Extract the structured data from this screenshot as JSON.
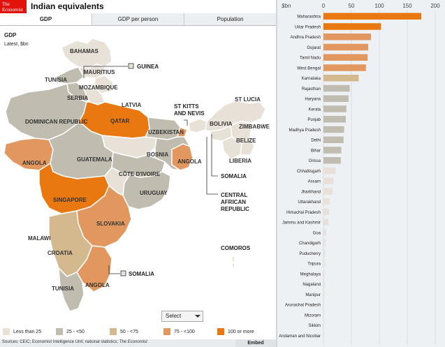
{
  "header": {
    "logo_line1": "The",
    "logo_line2": "Economist",
    "title": "Indian equivalents"
  },
  "tabs": [
    {
      "label": "GDP",
      "active": true
    },
    {
      "label": "GDP per person",
      "active": false
    },
    {
      "label": "Population",
      "active": false
    }
  ],
  "map": {
    "title": "GDP",
    "subtitle": "Latest, $bn",
    "region_labels": [
      "BAHAMAS",
      "MAURITIUS",
      "TUNISIA",
      "MOZAMBIQUE",
      "SERBIA",
      "LATVIA",
      "DOMINICAN REPUBLIC",
      "QATAR",
      "UZBEKISTAN",
      "ANGOLA",
      "GUATEMALA",
      "BOSNIA",
      "ANGOLA",
      "CÔTE D'IVOIRE",
      "URUGUAY",
      "SINGAPORE",
      "SLOVAKIA",
      "MALAWI",
      "CROATIA",
      "ANGOLA",
      "TUNISIA",
      "BOLIVIA",
      "ST LUCIA",
      "ZIMBABWE",
      "BELIZE",
      "LIBERIA"
    ],
    "callouts": [
      "GUINEA",
      "ST KITTS",
      "AND NEVIS",
      "SOMALIA",
      "CENTRAL",
      "AFRICAN",
      "REPUBLIC",
      "COMOROS",
      "SOMALIA"
    ]
  },
  "select": {
    "label": "Select"
  },
  "legend": [
    {
      "label": "Less than 25",
      "color": "#e8e1d8"
    },
    {
      "label": "25 - <50",
      "color": "#c0bcaf"
    },
    {
      "label": "50 - <75",
      "color": "#d4b98e"
    },
    {
      "label": "75 - <100",
      "color": "#e1975e"
    },
    {
      "label": "100 or more",
      "color": "#e8780f"
    }
  ],
  "footer": {
    "sources": "Sources: CEIC; Economist Intelligence Unit; national statistics;",
    "sources_brand": "The Economist",
    "embed": "Embed"
  },
  "chart_data": {
    "type": "bar",
    "orientation": "horizontal",
    "unit_label": "$bn",
    "xlim": [
      0,
      200
    ],
    "xticks": [
      "0",
      "50",
      "100",
      "150",
      "200"
    ],
    "grid": true,
    "categories": [
      "Maharashtra",
      "Uttar Pradesh",
      "Andhra Pradesh",
      "Gujarat",
      "Tamil Nadu",
      "West Bengal",
      "Karnataka",
      "Rajasthan",
      "Haryana",
      "Kerala",
      "Punjab",
      "Madhya Pradesh",
      "Delhi",
      "Bihar",
      "Orissa",
      "Chhattisgarh",
      "Assam",
      "Jharkhand",
      "Uttarakhand",
      "Himachal Pradesh",
      "Jammu and Kashmir",
      "Goa",
      "Chandigarh",
      "Puducherry",
      "Tripura",
      "Meghalaya",
      "Nagaland",
      "Manipur",
      "Arunachal Pradesh",
      "Mizoram",
      "Sikkim",
      "Andaman and Nicobar"
    ],
    "values": [
      175,
      103,
      85,
      80,
      79,
      76,
      63,
      47,
      45,
      41,
      40,
      37,
      36,
      32,
      31,
      22,
      18,
      16,
      11,
      10,
      9,
      5,
      4,
      3,
      3,
      2,
      2,
      2,
      1.5,
      1,
      1,
      1
    ],
    "colors": {
      "lt25": "#e8e1d8",
      "lt50": "#c0bcaf",
      "lt75": "#d4b98e",
      "lt100": "#e1975e",
      "ge100": "#e8780f"
    }
  }
}
